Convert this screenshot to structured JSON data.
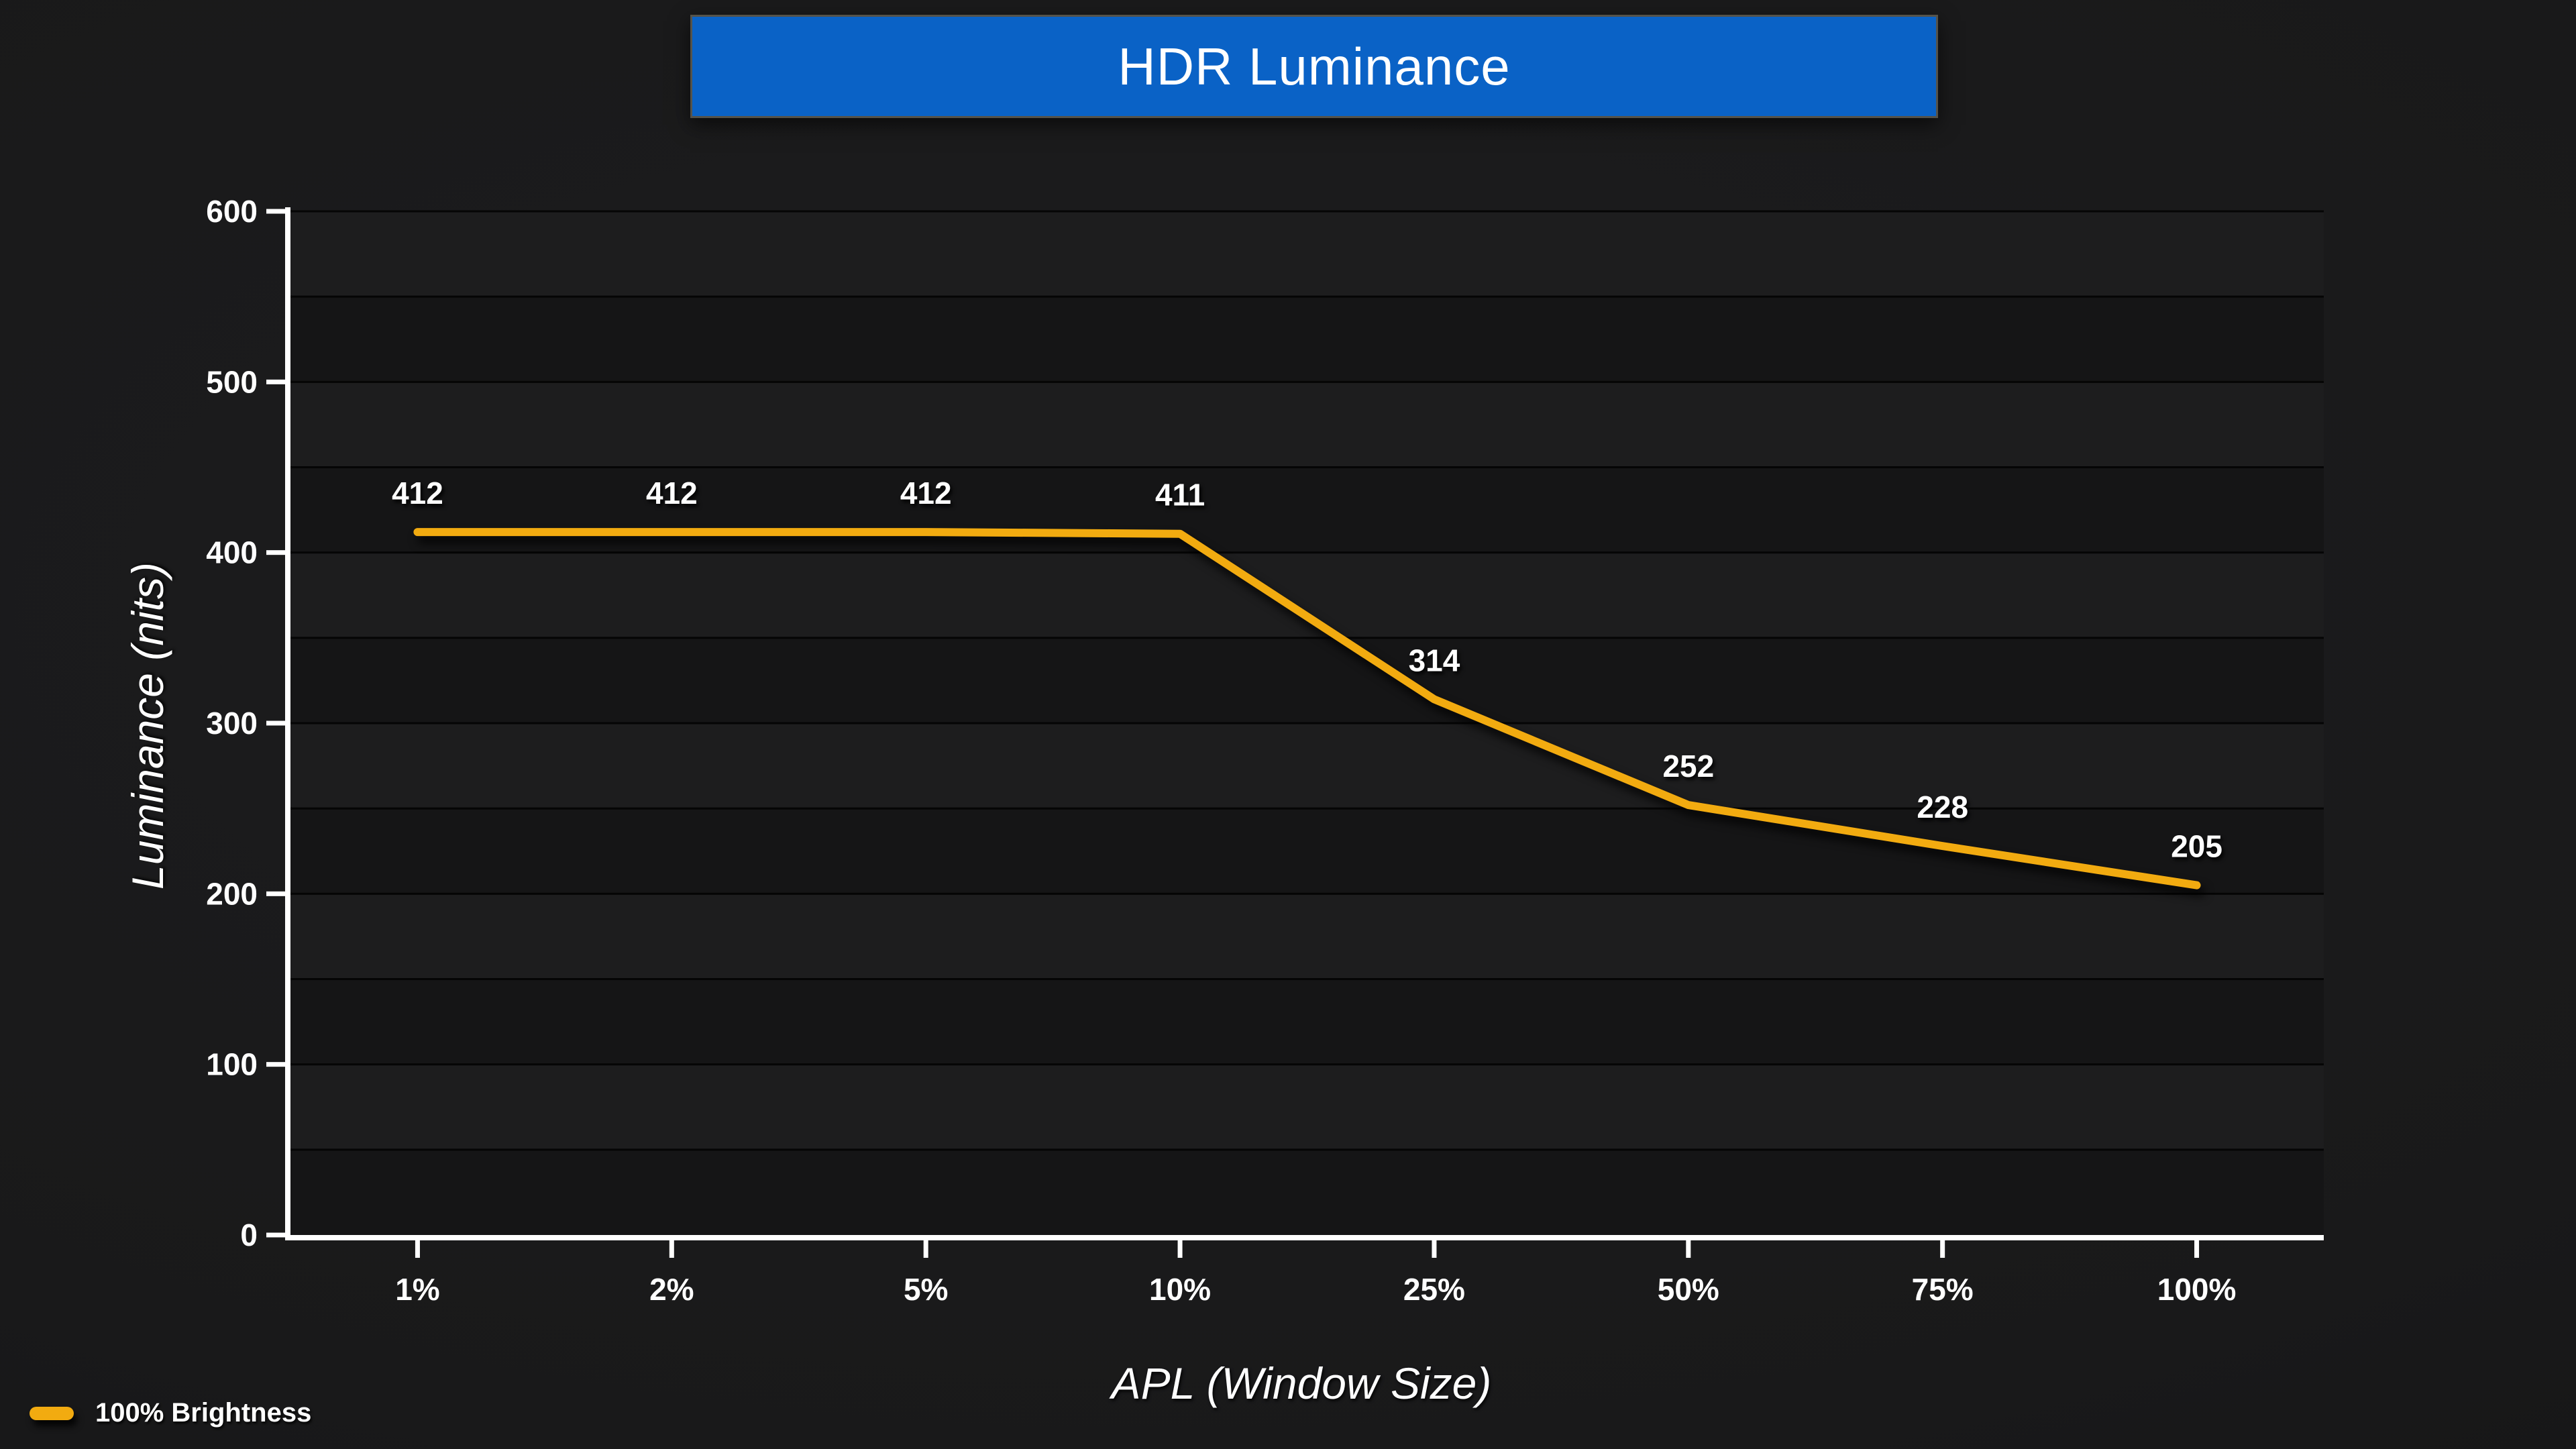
{
  "title_banner": {
    "label": "HDR Luminance",
    "bg_color": "#0a62c6",
    "border_color": "#55534a",
    "text_color": "#ffffff"
  },
  "legend": {
    "position": "bottom-left",
    "items": [
      {
        "label": "100% Brightness",
        "color": "#f2ab10"
      }
    ]
  },
  "chart_data": {
    "type": "line",
    "title": "HDR Luminance",
    "categories": [
      "1%",
      "2%",
      "5%",
      "10%",
      "25%",
      "50%",
      "75%",
      "100%"
    ],
    "series": [
      {
        "name": "100% Brightness",
        "color": "#f2ab10",
        "values": [
          412,
          412,
          412,
          411,
          314,
          252,
          228,
          205
        ]
      }
    ],
    "data_labels": [
      412,
      412,
      412,
      411,
      314,
      252,
      228,
      205
    ],
    "xlabel": "APL (Window Size)",
    "ylabel": "Luminance (nits)",
    "ylim": [
      0,
      600
    ],
    "yticks": [
      0,
      100,
      200,
      300,
      400,
      500,
      600
    ],
    "ygrid_step": 50,
    "grid": true,
    "legend_position": "bottom-left",
    "styles": {
      "axis_color": "#ffffff",
      "gridline_color": "#050505",
      "band_color_light": "#1d1d1e",
      "band_color_dark": "#151516",
      "tick_label_color": "#ffffff",
      "data_label_color": "#ffffff"
    }
  }
}
